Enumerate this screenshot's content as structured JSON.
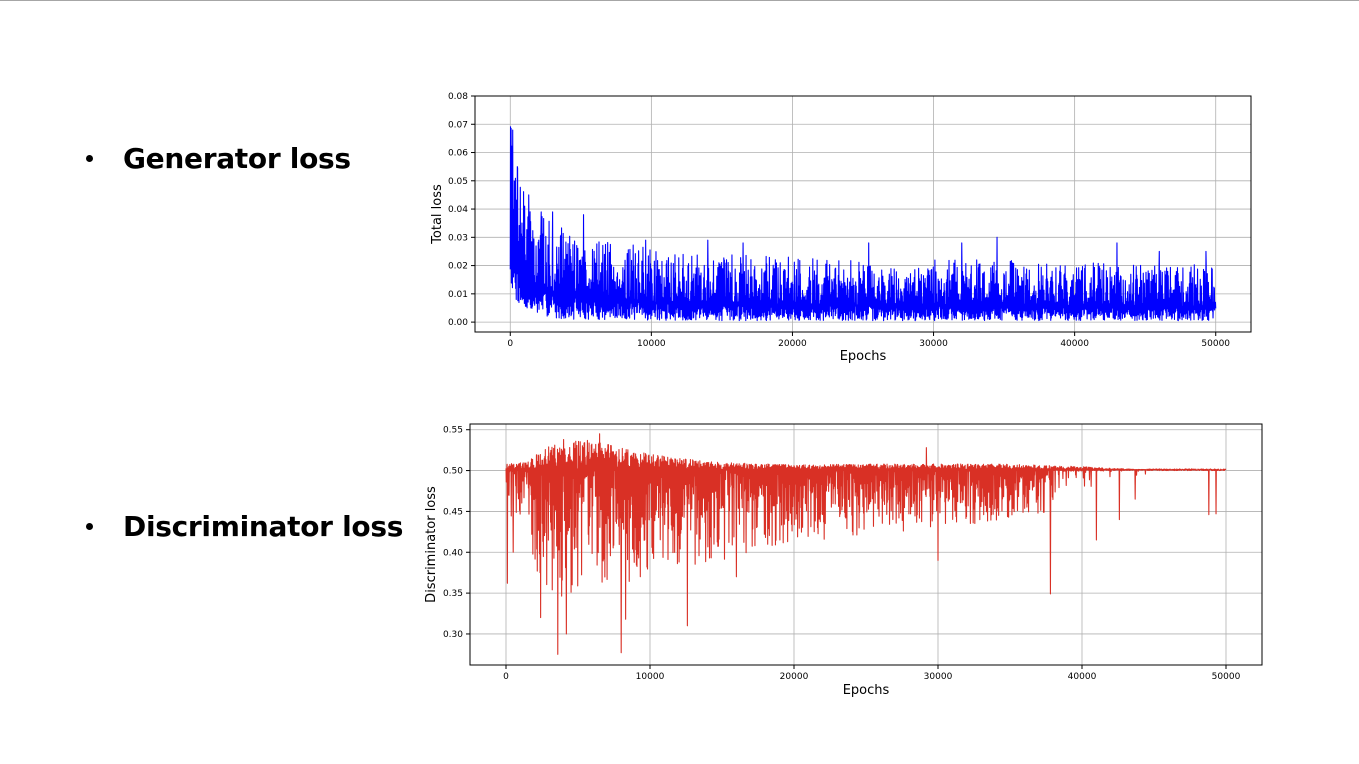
{
  "bullets": {
    "generator": "Generator loss",
    "discriminator": "Discriminator loss"
  },
  "chart_data": [
    {
      "type": "line",
      "xlabel": "Epochs",
      "ylabel": "Total loss",
      "xlim": [
        -2500,
        52500
      ],
      "ylim": [
        -0.0035,
        0.08
      ],
      "xticks": [
        0,
        10000,
        20000,
        30000,
        40000,
        50000
      ],
      "xtick_labels": [
        "0",
        "10000",
        "20000",
        "30000",
        "40000",
        "50000"
      ],
      "yticks": [
        0.0,
        0.01,
        0.02,
        0.03,
        0.04,
        0.05,
        0.06,
        0.07,
        0.08
      ],
      "ytick_labels": [
        "0.00",
        "0.01",
        "0.02",
        "0.03",
        "0.04",
        "0.05",
        "0.06",
        "0.07",
        "0.08"
      ],
      "grid": true,
      "color": "#0000ff",
      "series": [
        {
          "envelope_x": [
            0,
            200,
            400,
            700,
            1000,
            1500,
            2000,
            2500,
            3000,
            4000,
            5000,
            6000,
            8000,
            10000,
            12000,
            15000,
            20000,
            25000,
            30000,
            35000,
            40000,
            45000,
            50000
          ],
          "envelope_upper": [
            0.076,
            0.068,
            0.058,
            0.052,
            0.045,
            0.04,
            0.038,
            0.037,
            0.035,
            0.033,
            0.031,
            0.03,
            0.028,
            0.026,
            0.025,
            0.024,
            0.023,
            0.022,
            0.022,
            0.022,
            0.021,
            0.021,
            0.02
          ],
          "envelope_lower": [
            0.015,
            0.01,
            0.007,
            0.005,
            0.004,
            0.003,
            0.0025,
            0.002,
            0.0015,
            0.001,
            0.001,
            0.0008,
            0.0008,
            0.0006,
            0.0006,
            0.0005,
            0.0005,
            0.0005,
            0.0005,
            0.0005,
            0.0005,
            0.0005,
            0.0005
          ],
          "peaks": [
            [
              500,
              0.055
            ],
            [
              1300,
              0.045
            ],
            [
              2200,
              0.039
            ],
            [
              3000,
              0.039
            ],
            [
              5200,
              0.038
            ],
            [
              9600,
              0.029
            ],
            [
              14000,
              0.029
            ],
            [
              16500,
              0.028
            ],
            [
              25400,
              0.028
            ],
            [
              32000,
              0.028
            ],
            [
              34500,
              0.03
            ],
            [
              43000,
              0.028
            ],
            [
              46000,
              0.025
            ],
            [
              49300,
              0.025
            ]
          ]
        }
      ]
    },
    {
      "type": "line",
      "xlabel": "Epochs",
      "ylabel": "Discriminator loss",
      "xlim": [
        -2500,
        52500
      ],
      "ylim": [
        0.262,
        0.557
      ],
      "xticks": [
        0,
        10000,
        20000,
        30000,
        40000,
        50000
      ],
      "xtick_labels": [
        "0",
        "10000",
        "20000",
        "30000",
        "40000",
        "50000"
      ],
      "yticks": [
        0.3,
        0.35,
        0.4,
        0.45,
        0.5,
        0.55
      ],
      "ytick_labels": [
        "0.30",
        "0.35",
        "0.40",
        "0.45",
        "0.50",
        "0.55"
      ],
      "grid": true,
      "color": "#d93025",
      "series": [
        {
          "envelope_x": [
            0,
            1500,
            2000,
            3000,
            4000,
            6000,
            8000,
            10000,
            12000,
            15000,
            20000,
            25000,
            30000,
            35000,
            38000,
            40000,
            43000,
            45000,
            48000,
            50000
          ],
          "envelope_upper": [
            0.508,
            0.51,
            0.52,
            0.53,
            0.535,
            0.54,
            0.528,
            0.52,
            0.515,
            0.51,
            0.507,
            0.508,
            0.508,
            0.508,
            0.506,
            0.505,
            0.502,
            0.501,
            0.501,
            0.501
          ],
          "envelope_lower": [
            0.44,
            0.45,
            0.37,
            0.35,
            0.345,
            0.35,
            0.36,
            0.37,
            0.38,
            0.39,
            0.41,
            0.42,
            0.43,
            0.44,
            0.45,
            0.47,
            0.485,
            0.5,
            0.5,
            0.5
          ],
          "dips": [
            [
              100,
              0.362
            ],
            [
              500,
              0.4
            ],
            [
              2400,
              0.32
            ],
            [
              3600,
              0.275
            ],
            [
              4200,
              0.3
            ],
            [
              8000,
              0.277
            ],
            [
              8300,
              0.318
            ],
            [
              12600,
              0.31
            ],
            [
              16000,
              0.37
            ],
            [
              30000,
              0.39
            ],
            [
              37800,
              0.349
            ],
            [
              41000,
              0.415
            ],
            [
              42600,
              0.44
            ],
            [
              43700,
              0.465
            ],
            [
              48800,
              0.446
            ],
            [
              49300,
              0.447
            ]
          ],
          "peaks": [
            [
              6500,
              0.545
            ],
            [
              4000,
              0.538
            ],
            [
              29200,
              0.528
            ]
          ],
          "plateau_value": 0.501
        }
      ]
    }
  ]
}
